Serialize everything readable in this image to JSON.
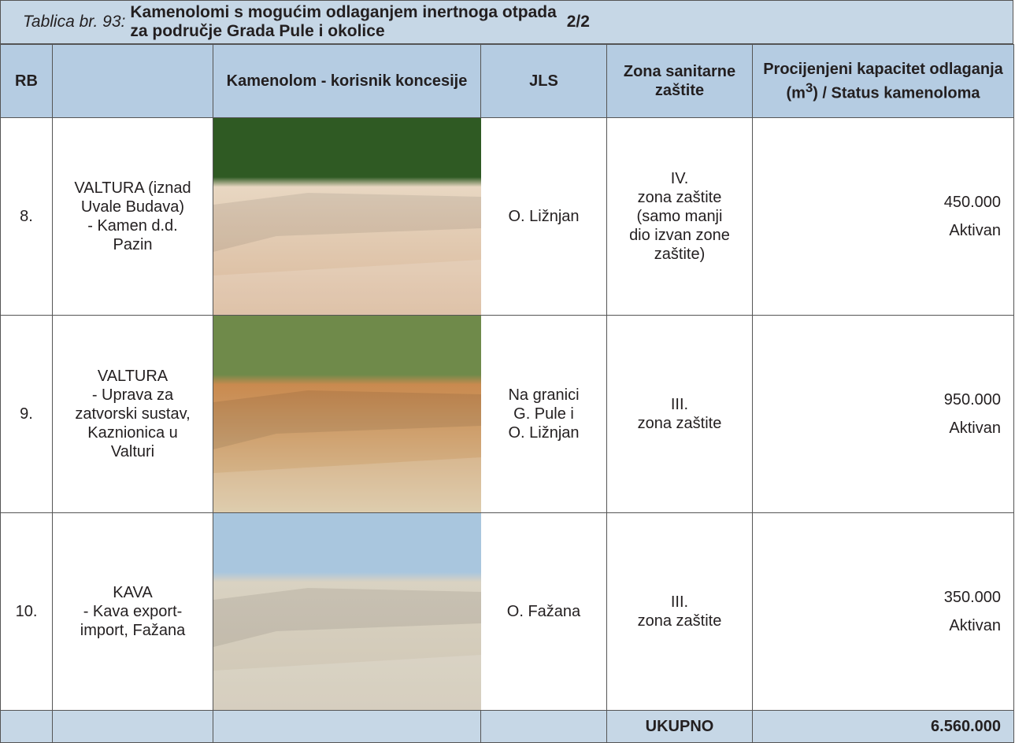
{
  "header": {
    "label": "Tablica br. 93:",
    "title": "Kamenolomi s mogućim odlaganjem inertnoga otpada za područje Grada Pule i okolice",
    "page": "2/2"
  },
  "table": {
    "columns": [
      "RB",
      "Kamenolom - korisnik koncesije",
      "JLS",
      "Zona sanitarne zaštite",
      [
        "Procijenjeni kapacitet odlaganja (m",
        "3",
        ") / Status kamenoloma"
      ]
    ],
    "rows": [
      {
        "rb": "8.",
        "name": [
          "VALTURA (iznad",
          "Uvale Budava)",
          "- Kamen d.d.",
          "Pazin"
        ],
        "jls": [
          "O. Ližnjan"
        ],
        "zone": [
          "IV.",
          "zona zaštite",
          "(samo manji",
          "dio izvan zone",
          "zaštite)"
        ],
        "capacity": "450.000",
        "status": "Aktivan"
      },
      {
        "rb": "9.",
        "name": [
          "VALTURA",
          "- Uprava za",
          "zatvorski sustav,",
          "Kaznionica u",
          "Valturi"
        ],
        "jls": [
          "Na granici",
          "G. Pule i",
          "O. Ližnjan"
        ],
        "zone": [
          "III.",
          "zona zaštite"
        ],
        "capacity": "950.000",
        "status": "Aktivan"
      },
      {
        "rb": "10.",
        "name": [
          "KAVA",
          "- Kava export-",
          "import, Fažana"
        ],
        "jls": [
          "O. Fažana"
        ],
        "zone": [
          "III.",
          "zona zaštite"
        ],
        "capacity": "350.000",
        "status": "Aktivan"
      }
    ],
    "total": {
      "label": "UKUPNO",
      "value": "6.560.000"
    }
  }
}
